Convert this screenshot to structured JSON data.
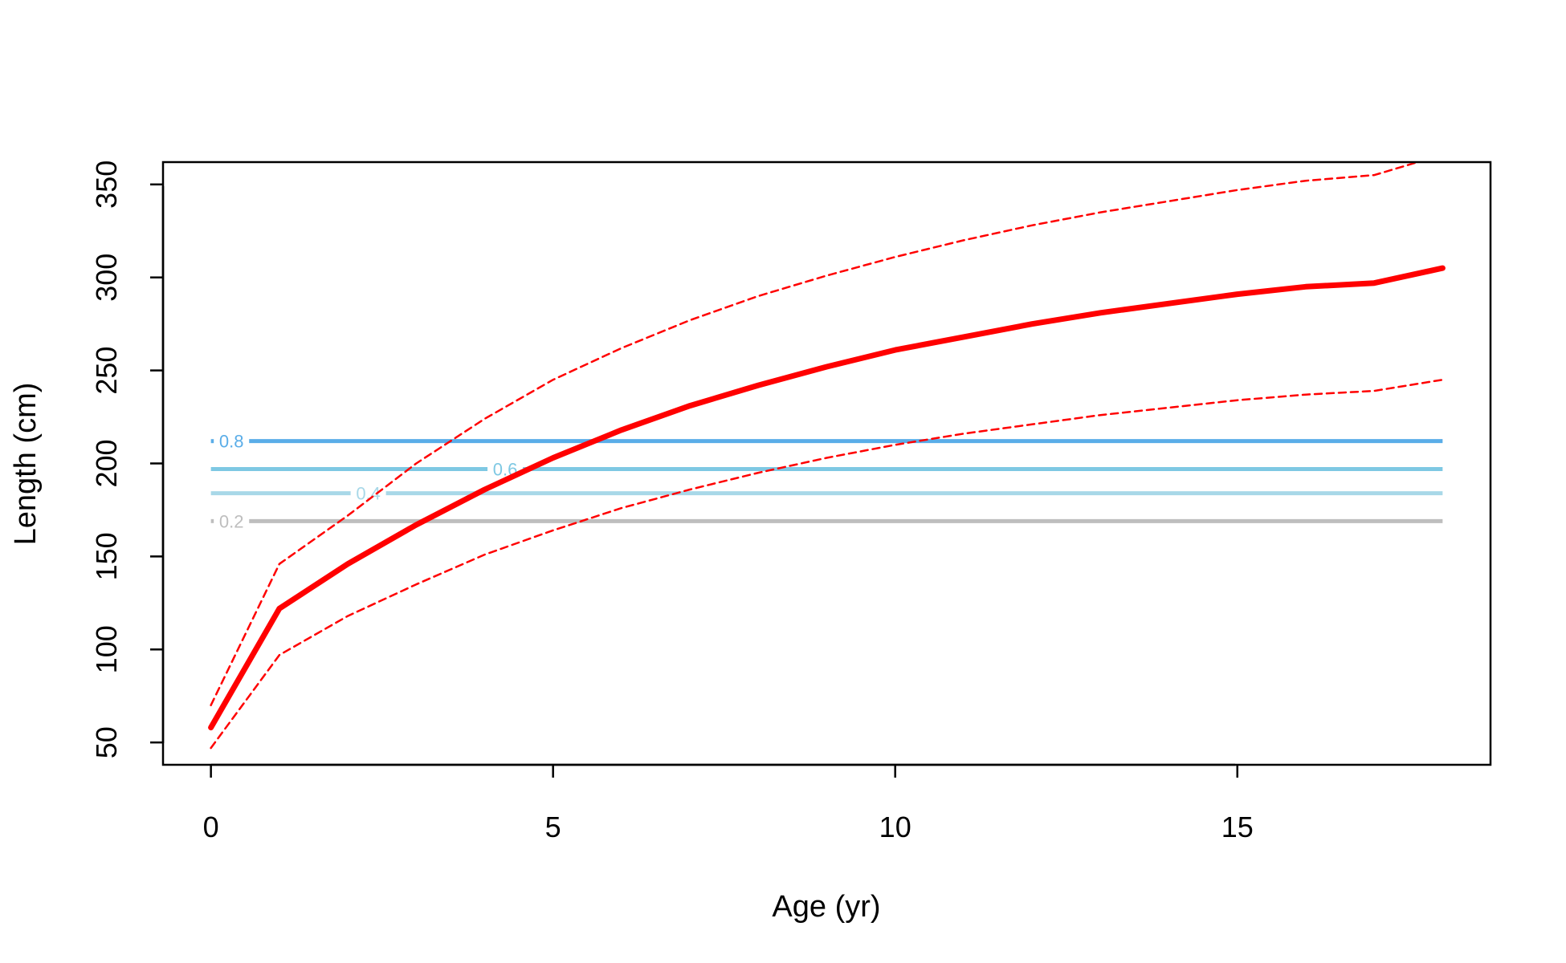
{
  "chart_data": {
    "type": "line",
    "title": "",
    "xlabel": "Age (yr)",
    "ylabel": "Length (cm)",
    "xlim": [
      -0.7,
      18.7
    ],
    "ylim": [
      38,
      362
    ],
    "x_ticks": [
      0,
      5,
      10,
      15
    ],
    "y_ticks": [
      50,
      100,
      150,
      200,
      250,
      300,
      350
    ],
    "x_tick_labels": [
      "0",
      "5",
      "10",
      "15"
    ],
    "y_tick_labels": [
      "50",
      "100",
      "150",
      "200",
      "250",
      "300",
      "350"
    ],
    "grid": false,
    "series": [
      {
        "role": "mean",
        "color": "#ff0000",
        "style": "solid",
        "x": [
          0,
          1,
          2,
          3,
          4,
          5,
          6,
          7,
          8,
          9,
          10,
          11,
          12,
          13,
          14,
          15,
          16,
          17,
          18
        ],
        "y": [
          58,
          122,
          146,
          167,
          186,
          203,
          218,
          231,
          242,
          252,
          261,
          268,
          275,
          281,
          286,
          291,
          295,
          297,
          305
        ]
      },
      {
        "role": "upper",
        "color": "#ff0000",
        "style": "dashed",
        "x": [
          0,
          1,
          2,
          3,
          4,
          5,
          6,
          7,
          8,
          9,
          10,
          11,
          12,
          13,
          14,
          15,
          16,
          17,
          18
        ],
        "y": [
          70,
          146,
          172,
          200,
          224,
          245,
          262,
          277,
          290,
          301,
          311,
          320,
          328,
          335,
          341,
          347,
          352,
          355,
          366
        ]
      },
      {
        "role": "lower",
        "color": "#ff0000",
        "style": "dashed",
        "x": [
          0,
          1,
          2,
          3,
          4,
          5,
          6,
          7,
          8,
          9,
          10,
          11,
          12,
          13,
          14,
          15,
          16,
          17,
          18
        ],
        "y": [
          47,
          97,
          118,
          135,
          151,
          164,
          176,
          186,
          195,
          203,
          210,
          216,
          221,
          226,
          230,
          234,
          237,
          239,
          245
        ]
      }
    ],
    "reference_lines": [
      {
        "label": "0.8",
        "y": 212,
        "x_start": 0,
        "x_end": 18,
        "color": "#5aade8"
      },
      {
        "label": "0.6",
        "y": 197,
        "x_start": 0,
        "x_end": 18,
        "color": "#7ec8e3"
      },
      {
        "label": "0.4",
        "y": 184,
        "x_start": 0,
        "x_end": 18,
        "color": "#a8d8e8"
      },
      {
        "label": "0.2",
        "y": 169,
        "x_start": 0,
        "x_end": 18,
        "color": "#bebebe"
      }
    ],
    "reference_label_x": [
      0.3,
      4.3,
      2.3,
      0.3
    ]
  }
}
